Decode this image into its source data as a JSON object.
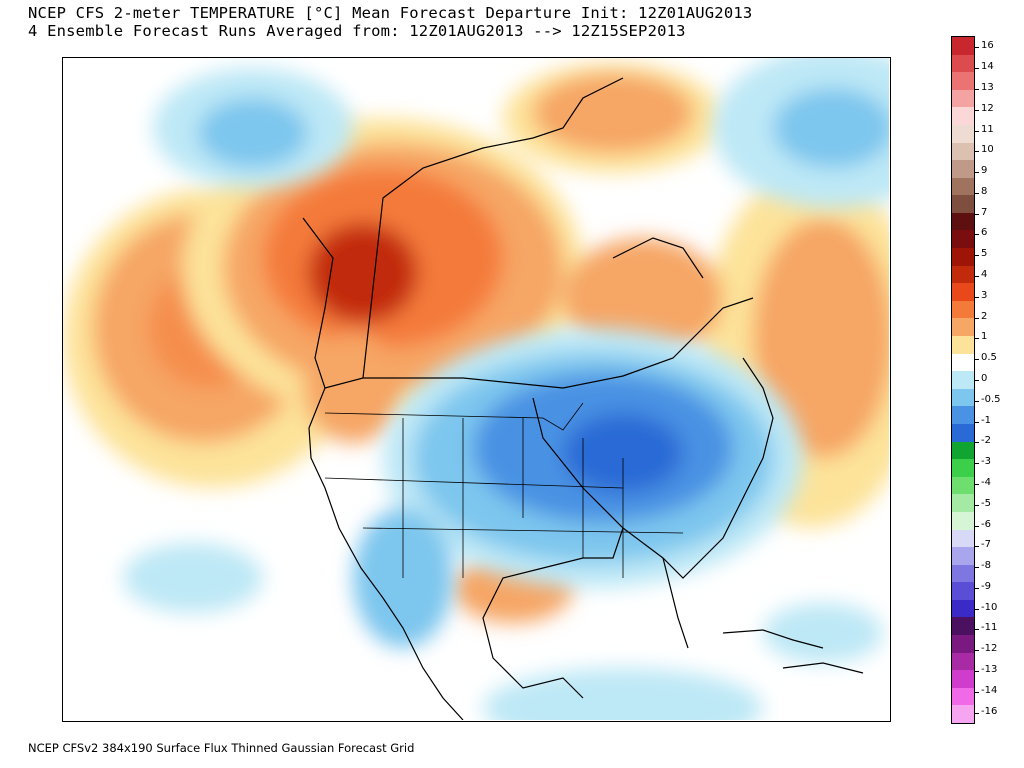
{
  "header": {
    "line1": "NCEP CFS 2-meter TEMPERATURE [°C] Mean Forecast Departure Init: 12Z01AUG2013",
    "line2": "4 Ensemble Forecast Runs Averaged from: 12Z01AUG2013 --> 12Z15SEP2013"
  },
  "footer": {
    "text": "NCEP CFSv2 384x190 Surface Flux Thinned Gaussian Forecast Grid"
  },
  "colorbar": {
    "labels": [
      "16",
      "14",
      "13",
      "12",
      "11",
      "10",
      "9",
      "8",
      "7",
      "6",
      "5",
      "4",
      "3",
      "2",
      "1",
      "0.5",
      "0",
      "-0.5",
      "-1",
      "-2",
      "-3",
      "-4",
      "-5",
      "-6",
      "-7",
      "-8",
      "-9",
      "-10",
      "-11",
      "-12",
      "-13",
      "-14",
      "-16"
    ],
    "colors": [
      "#c8282d",
      "#dc4b4e",
      "#ec7373",
      "#f4a3a3",
      "#fbd7d7",
      "#eedcd2",
      "#dcc0b0",
      "#bf9a88",
      "#a0735f",
      "#7e4f3e",
      "#5e1010",
      "#7a0e0e",
      "#9e1508",
      "#c22a0c",
      "#e8481a",
      "#f47a3a",
      "#f6a665",
      "#fde39a",
      "#ffffff",
      "#bde8f6",
      "#7dc6ee",
      "#4a92e3",
      "#2a6ad6",
      "#10a530",
      "#3ccf4a",
      "#6edf6e",
      "#a4eaa4",
      "#d5f5d5",
      "#d8d8f7",
      "#aaa6ee",
      "#7e77e2",
      "#5a4ed7",
      "#3a2ac8",
      "#4c1060",
      "#7a1a80",
      "#a82aa5",
      "#d03ccc",
      "#f06ae8",
      "#f6a6f1"
    ]
  }
}
